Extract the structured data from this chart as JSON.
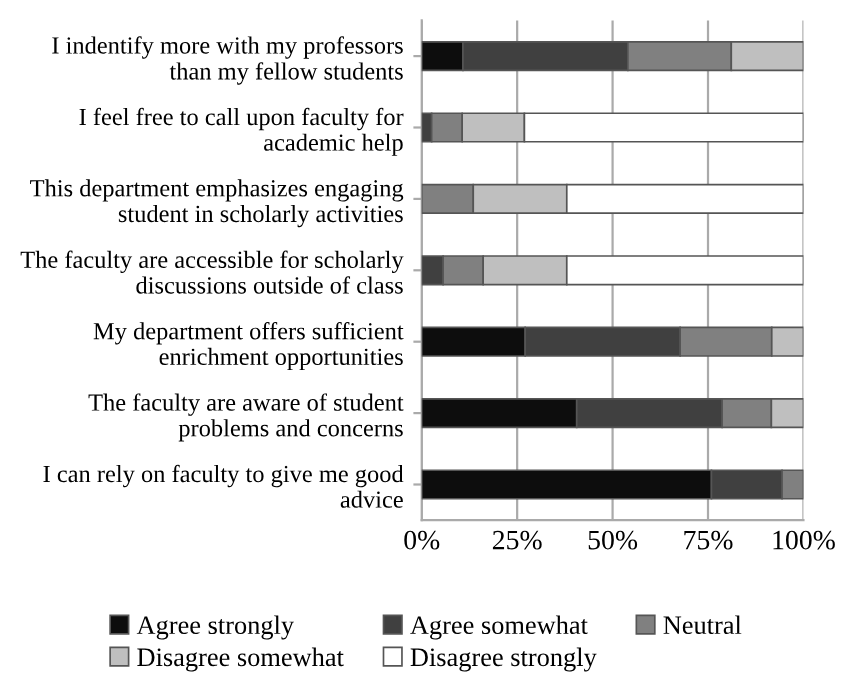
{
  "chart_data": {
    "type": "bar",
    "orientation": "horizontal",
    "stacked": true,
    "categories": [
      "I indentify more with my professors\nthan my fellow students",
      "I feel free to call upon faculty for\nacademic help",
      "This department emphasizes engaging\nstudent in scholarly activities",
      "The faculty are accessible for scholarly\ndiscussions outside of class",
      "My department offers sufficient\nenrichment opportunities",
      "The faculty are aware of student\nproblems and concerns",
      "I can rely on faculty to give me good\nadvice"
    ],
    "series": [
      {
        "name": "Agree strongly",
        "color": "#0d0d0d",
        "values": [
          10.8,
          null,
          null,
          null,
          27.1,
          40.6,
          75.9
        ]
      },
      {
        "name": "Agree somewhat",
        "color": "#404040",
        "values": [
          43.2,
          2.6,
          null,
          5.6,
          40.6,
          38.1,
          18.5
        ]
      },
      {
        "name": "Neutral",
        "color": "#808080",
        "values": [
          27.1,
          8.0,
          13.5,
          10.5,
          24.0,
          12.9,
          5.6
        ]
      },
      {
        "name": "Disagree somewhat",
        "color": "#bfbfbf",
        "values": [
          18.9,
          16.3,
          24.5,
          21.9,
          8.3,
          8.4,
          null
        ]
      },
      {
        "name": "Disagree strongly",
        "color": "#ffffff",
        "values": [
          null,
          73.1,
          62.0,
          62.0,
          null,
          null,
          null
        ]
      }
    ],
    "xlim": [
      0,
      100
    ],
    "xticks": [
      {
        "value": 0,
        "label": "0%"
      },
      {
        "value": 25,
        "label": "25%"
      },
      {
        "value": 50,
        "label": "50%"
      },
      {
        "value": 75,
        "label": "75%"
      },
      {
        "value": 100,
        "label": "100%"
      }
    ],
    "grid": "x",
    "legend": "bottom"
  }
}
